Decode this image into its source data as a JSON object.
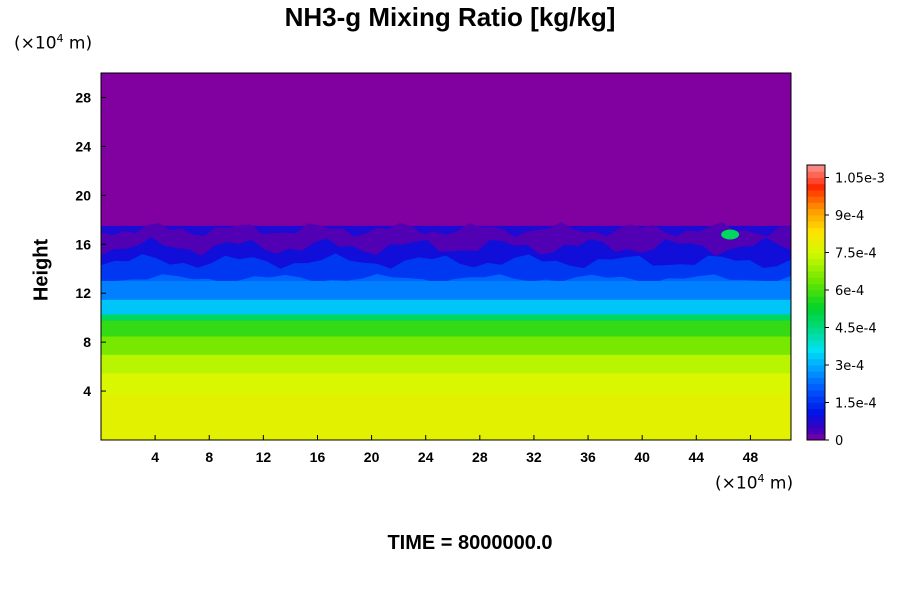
{
  "chart_data": {
    "type": "heatmap",
    "title": "NH3-g Mixing Ratio [kg/kg]",
    "ylabel": "Height",
    "x_unit": "(×10",
    "y_unit": "(×10",
    "unit_exponent": "4",
    "unit_suffix": " m)",
    "x_ticks": [
      "4",
      "8",
      "12",
      "16",
      "20",
      "24",
      "28",
      "32",
      "36",
      "40",
      "44",
      "48"
    ],
    "y_ticks": [
      "4",
      "8",
      "12",
      "16",
      "20",
      "24",
      "28"
    ],
    "xlim": [
      0,
      51
    ],
    "ylim": [
      0,
      30
    ],
    "colorbar": {
      "ticks": [
        "0",
        "1.5e-4",
        "3e-4",
        "4.5e-4",
        "6e-4",
        "7.5e-4",
        "9e-4",
        "1.05e-3"
      ],
      "tick_values": [
        0,
        0.00015,
        0.0003,
        0.00045,
        0.0006,
        0.00075,
        0.0009,
        0.00105
      ],
      "range": [
        0,
        0.0011
      ]
    },
    "field_profile": [
      {
        "height": 0,
        "value": 0.00078
      },
      {
        "height": 3.8,
        "value": 0.00076
      },
      {
        "height": 5.5,
        "value": 0.00072
      },
      {
        "height": 7.0,
        "value": 0.00065
      },
      {
        "height": 8.5,
        "value": 0.00058
      },
      {
        "height": 9.8,
        "value": 0.00048
      },
      {
        "height": 10.3,
        "value": 0.00033
      },
      {
        "height": 11.5,
        "value": 0.00025
      },
      {
        "height": 13.0,
        "value": 0.00022
      },
      {
        "height": 14.5,
        "value": 0.00015
      },
      {
        "height": 16.0,
        "value": 8e-05
      },
      {
        "height": 17.5,
        "value": 0.0
      }
    ],
    "features": [
      {
        "x": 46.5,
        "y": 16.8,
        "value": 0.00048
      }
    ]
  },
  "footer": {
    "time_label": "TIME = 8000000.0"
  }
}
